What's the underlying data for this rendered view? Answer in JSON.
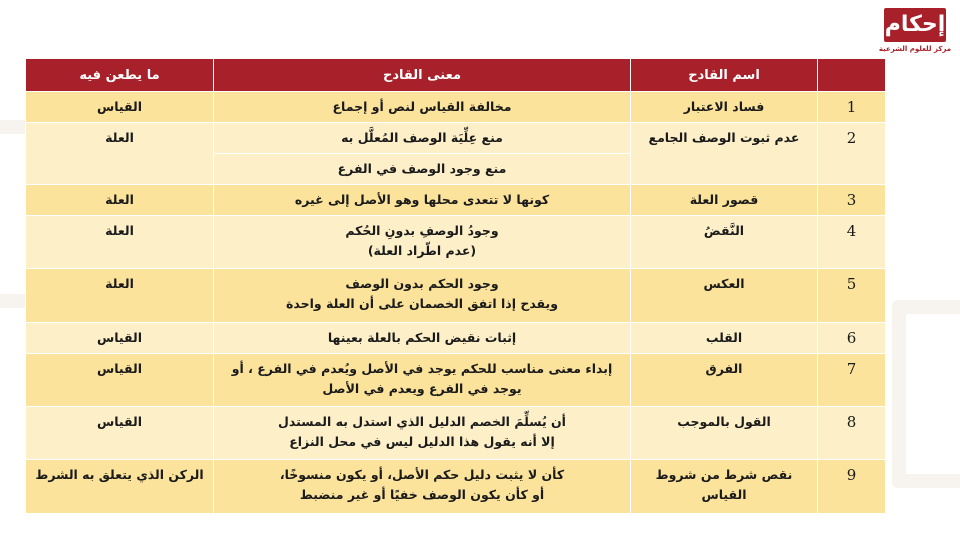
{
  "logo": {
    "text": "إحكام",
    "subtitle": "مركز للعلوم الشرعية"
  },
  "colors": {
    "header": "#a8202a",
    "row_dark": "#fbe39b",
    "row_light": "#fdf0c9"
  },
  "table": {
    "headers": [
      "",
      "اسم القادح",
      "معنى القادح",
      "ما يطعن فيه"
    ],
    "rows": [
      {
        "num": "1",
        "name": "فساد الاعتبار",
        "meaning": [
          "مخالفة القياس لنص أو إجماع"
        ],
        "target": "القياس"
      },
      {
        "num": "2",
        "name": "عدم ثبوت الوصف الجامع",
        "meaning": [
          "منع عِلِّيَة الوصف المُعلَّل به",
          "منع وجود الوصف في الفرع"
        ],
        "target": "العلة"
      },
      {
        "num": "3",
        "name": "قصور العلة",
        "meaning": [
          "كونها لا تتعدى محلها وهو الأصل إلى غيره"
        ],
        "target": "العلة"
      },
      {
        "num": "4",
        "name": "النَّقضُ",
        "meaning": [
          "وجودُ الوصفِ بدونِ الحُكم",
          "(عدم اطّراد العلة)"
        ],
        "target": "العلة"
      },
      {
        "num": "5",
        "name": "العكس",
        "meaning": [
          "وجود الحكم بدون الوصف",
          "ويقدح إذا اتفق الخصمان على أن العلة واحدة"
        ],
        "target": "العلة"
      },
      {
        "num": "6",
        "name": "القلب",
        "meaning": [
          "إثبات نقيض الحكم بالعلة بعينها"
        ],
        "target": "القياس"
      },
      {
        "num": "7",
        "name": "الفرق",
        "meaning": [
          "إبداء معنى مناسب للحكم يوجد في الأصل ويُعدم في الفرع ، أو يوجد في الفرع ويعدم في الأصل"
        ],
        "target": "القياس"
      },
      {
        "num": "8",
        "name": "القول بالموجب",
        "meaning": [
          "أن يُسلِّمَ الخصم الدليل الذي استدل به المستدل",
          "إلا أنه يقول هذا الدليل ليس في محل النزاع"
        ],
        "target": "القياس"
      },
      {
        "num": "9",
        "name": "نقص شرط من شروط القياس",
        "meaning": [
          "كأن لا يثبت دليل حكم الأصل، أو يكون منسوخًا،",
          "أو كأن يكون الوصف خفيًا أو غير منضبط"
        ],
        "target": "الركن الذي يتعلق به الشرط"
      }
    ]
  }
}
